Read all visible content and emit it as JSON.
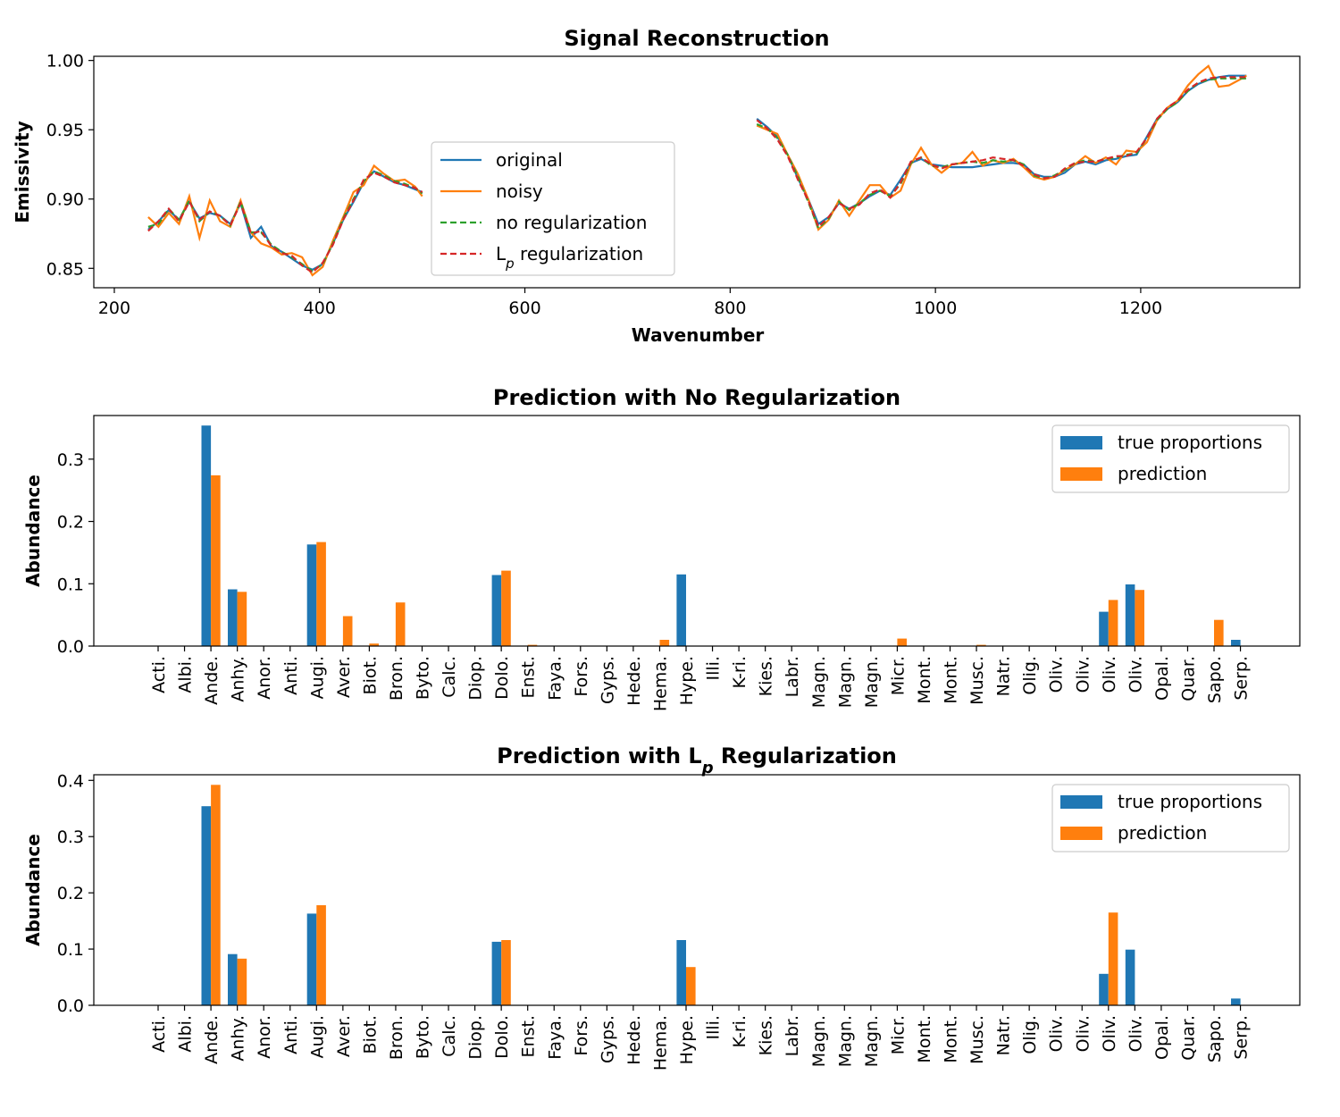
{
  "colors": {
    "original": "#1f77b4",
    "noisy": "#ff7f0e",
    "no_reg": "#2ca02c",
    "lp_reg": "#d62728",
    "true": "#1f77b4",
    "pred": "#ff7f0e"
  },
  "chart_data": [
    {
      "type": "line",
      "title": "Signal Reconstruction",
      "xlabel": "Wavenumber",
      "ylabel": "Emissivity",
      "xlim": [
        180,
        1355
      ],
      "ylim": [
        0.836,
        1.003
      ],
      "xticks": [
        200,
        400,
        600,
        800,
        1000,
        1200
      ],
      "yticks": [
        0.85,
        0.9,
        0.95,
        1.0
      ],
      "ytick_labels": [
        "0.85",
        "0.90",
        "0.95",
        "1.00"
      ],
      "legend_position": "center",
      "x": [
        [
          233,
          243,
          253,
          263,
          273,
          283,
          293,
          303,
          313,
          323,
          333,
          343,
          353,
          363,
          373,
          383,
          393,
          403,
          413,
          423,
          433,
          443,
          453,
          463,
          473,
          483,
          493,
          500
        ],
        [
          826,
          836,
          846,
          856,
          866,
          876,
          886,
          896,
          906,
          916,
          926,
          936,
          946,
          956,
          966,
          976,
          986,
          996,
          1006,
          1016,
          1026,
          1036,
          1046,
          1056,
          1066,
          1076,
          1086,
          1096,
          1106,
          1116,
          1126,
          1136,
          1146,
          1156,
          1166,
          1176,
          1186,
          1196,
          1206,
          1216,
          1226,
          1236,
          1246,
          1256,
          1266,
          1276,
          1286,
          1296,
          1303
        ]
      ],
      "series": [
        {
          "name": "original",
          "style": "solid",
          "values": [
            [
              0.878,
              0.884,
              0.892,
              0.885,
              0.898,
              0.886,
              0.89,
              0.888,
              0.882,
              0.897,
              0.872,
              0.88,
              0.866,
              0.862,
              0.857,
              0.852,
              0.849,
              0.853,
              0.868,
              0.885,
              0.898,
              0.912,
              0.92,
              0.916,
              0.912,
              0.91,
              0.907,
              0.905
            ],
            [
              0.958,
              0.952,
              0.945,
              0.932,
              0.915,
              0.9,
              0.882,
              0.887,
              0.897,
              0.893,
              0.897,
              0.902,
              0.906,
              0.903,
              0.914,
              0.926,
              0.929,
              0.925,
              0.924,
              0.923,
              0.923,
              0.923,
              0.924,
              0.925,
              0.926,
              0.926,
              0.925,
              0.918,
              0.916,
              0.916,
              0.919,
              0.925,
              0.927,
              0.925,
              0.928,
              0.929,
              0.931,
              0.932,
              0.945,
              0.958,
              0.965,
              0.97,
              0.978,
              0.983,
              0.986,
              0.988,
              0.989,
              0.989,
              0.989
            ]
          ]
        },
        {
          "name": "noisy",
          "style": "solid",
          "values": [
            [
              0.887,
              0.88,
              0.89,
              0.882,
              0.902,
              0.872,
              0.899,
              0.884,
              0.88,
              0.899,
              0.876,
              0.868,
              0.865,
              0.86,
              0.861,
              0.858,
              0.845,
              0.851,
              0.87,
              0.887,
              0.905,
              0.91,
              0.924,
              0.918,
              0.913,
              0.914,
              0.909,
              0.902
            ],
            [
              0.953,
              0.95,
              0.947,
              0.932,
              0.918,
              0.9,
              0.878,
              0.885,
              0.899,
              0.888,
              0.899,
              0.91,
              0.91,
              0.901,
              0.906,
              0.925,
              0.937,
              0.925,
              0.919,
              0.925,
              0.926,
              0.934,
              0.924,
              0.928,
              0.926,
              0.929,
              0.923,
              0.916,
              0.914,
              0.916,
              0.921,
              0.925,
              0.931,
              0.926,
              0.93,
              0.925,
              0.935,
              0.934,
              0.941,
              0.957,
              0.966,
              0.971,
              0.982,
              0.99,
              0.996,
              0.981,
              0.982,
              0.986,
              0.989
            ]
          ]
        },
        {
          "name": "no regularization",
          "style": "dashed",
          "values": [
            [
              0.88,
              0.882,
              0.893,
              0.885,
              0.899,
              0.884,
              0.891,
              0.888,
              0.881,
              0.898,
              0.876,
              0.876,
              0.867,
              0.862,
              0.858,
              0.853,
              0.848,
              0.853,
              0.868,
              0.886,
              0.9,
              0.913,
              0.92,
              0.917,
              0.913,
              0.911,
              0.908,
              0.904
            ],
            [
              0.954,
              0.951,
              0.944,
              0.932,
              0.916,
              0.898,
              0.879,
              0.886,
              0.898,
              0.892,
              0.897,
              0.903,
              0.906,
              0.902,
              0.911,
              0.926,
              0.93,
              0.924,
              0.923,
              0.925,
              0.926,
              0.927,
              0.926,
              0.928,
              0.927,
              0.928,
              0.925,
              0.917,
              0.915,
              0.917,
              0.921,
              0.926,
              0.928,
              0.927,
              0.929,
              0.93,
              0.932,
              0.933,
              0.944,
              0.957,
              0.965,
              0.97,
              0.978,
              0.984,
              0.986,
              0.987,
              0.987,
              0.987,
              0.987
            ]
          ]
        },
        {
          "name": "L$_p$ regularization",
          "style": "dashed",
          "values": [
            [
              0.877,
              0.884,
              0.893,
              0.884,
              0.898,
              0.885,
              0.891,
              0.888,
              0.881,
              0.897,
              0.875,
              0.877,
              0.866,
              0.861,
              0.859,
              0.852,
              0.847,
              0.854,
              0.867,
              0.885,
              0.899,
              0.914,
              0.919,
              0.916,
              0.912,
              0.91,
              0.908,
              0.905
            ],
            [
              0.957,
              0.951,
              0.943,
              0.931,
              0.914,
              0.899,
              0.88,
              0.887,
              0.897,
              0.893,
              0.896,
              0.904,
              0.907,
              0.901,
              0.912,
              0.927,
              0.93,
              0.925,
              0.922,
              0.925,
              0.926,
              0.927,
              0.928,
              0.93,
              0.929,
              0.928,
              0.924,
              0.918,
              0.915,
              0.916,
              0.922,
              0.926,
              0.927,
              0.927,
              0.929,
              0.931,
              0.931,
              0.934,
              0.944,
              0.958,
              0.966,
              0.971,
              0.979,
              0.984,
              0.987,
              0.988,
              0.988,
              0.988,
              0.988
            ]
          ]
        }
      ]
    },
    {
      "type": "bar",
      "title": "Prediction with No Regularization",
      "xlabel": "",
      "ylabel": "Abundance",
      "ylim": [
        0,
        0.37
      ],
      "yticks": [
        0.0,
        0.1,
        0.2,
        0.3
      ],
      "ytick_labels": [
        "0.0",
        "0.1",
        "0.2",
        "0.3"
      ],
      "legend_position": "top-right",
      "categories": [
        "Acti.",
        "Albi.",
        "Ande.",
        "Anhy.",
        "Anor.",
        "Anti.",
        "Augi.",
        "Aver.",
        "Biot.",
        "Bron.",
        "Byto.",
        "Calc.",
        "Diop.",
        "Dolo.",
        "Enst.",
        "Faya.",
        "Fors.",
        "Gyps.",
        "Hede.",
        "Hema.",
        "Hype.",
        "Illi.",
        "K-ri.",
        "Kies.",
        "Labr.",
        "Magn.",
        "Magn.",
        "Magn.",
        "Micr.",
        "Mont.",
        "Mont.",
        "Musc.",
        "Natr.",
        "Olig.",
        "Oliv.",
        "Oliv.",
        "Oliv.",
        "Oliv.",
        "Opal.",
        "Quar.",
        "Sapo.",
        "Serp."
      ],
      "series": [
        {
          "name": "true proportions",
          "values": [
            0,
            0,
            0.354,
            0.091,
            0,
            0,
            0.163,
            0,
            0,
            0,
            0,
            0,
            0,
            0.114,
            0,
            0,
            0,
            0,
            0,
            0,
            0.115,
            0,
            0,
            0,
            0,
            0,
            0,
            0,
            0,
            0,
            0,
            0,
            0,
            0,
            0,
            0,
            0.055,
            0.099,
            0,
            0,
            0,
            0.01
          ]
        },
        {
          "name": "prediction",
          "values": [
            0,
            0,
            0.274,
            0.087,
            0,
            0,
            0.167,
            0.048,
            0.004,
            0.07,
            0,
            0,
            0,
            0.121,
            0.002,
            0,
            0,
            0,
            0,
            0.01,
            0,
            0,
            0,
            0,
            0,
            0,
            0,
            0,
            0.012,
            0,
            0,
            0.002,
            0,
            0,
            0,
            0,
            0.074,
            0.09,
            0,
            0,
            0.042,
            0
          ]
        }
      ]
    },
    {
      "type": "bar",
      "title": "Prediction with L$_p$ Regularization",
      "xlabel": "",
      "ylabel": "Abundance",
      "ylim": [
        0,
        0.41
      ],
      "yticks": [
        0.0,
        0.1,
        0.2,
        0.3,
        0.4
      ],
      "ytick_labels": [
        "0.0",
        "0.1",
        "0.2",
        "0.3",
        "0.4"
      ],
      "legend_position": "top-right",
      "categories": [
        "Acti.",
        "Albi.",
        "Ande.",
        "Anhy.",
        "Anor.",
        "Anti.",
        "Augi.",
        "Aver.",
        "Biot.",
        "Bron.",
        "Byto.",
        "Calc.",
        "Diop.",
        "Dolo.",
        "Enst.",
        "Faya.",
        "Fors.",
        "Gyps.",
        "Hede.",
        "Hema.",
        "Hype.",
        "Illi.",
        "K-ri.",
        "Kies.",
        "Labr.",
        "Magn.",
        "Magn.",
        "Magn.",
        "Micr.",
        "Mont.",
        "Mont.",
        "Musc.",
        "Natr.",
        "Olig.",
        "Oliv.",
        "Oliv.",
        "Oliv.",
        "Oliv.",
        "Opal.",
        "Quar.",
        "Sapo.",
        "Serp."
      ],
      "series": [
        {
          "name": "true proportions",
          "values": [
            0,
            0,
            0.354,
            0.091,
            0,
            0,
            0.163,
            0,
            0,
            0,
            0,
            0,
            0,
            0.113,
            0,
            0,
            0,
            0,
            0,
            0,
            0.116,
            0,
            0,
            0,
            0,
            0,
            0,
            0,
            0,
            0,
            0,
            0,
            0,
            0,
            0,
            0,
            0.056,
            0.099,
            0,
            0,
            0,
            0.012
          ]
        },
        {
          "name": "prediction",
          "values": [
            0,
            0,
            0.392,
            0.083,
            0,
            0,
            0.178,
            0,
            0,
            0,
            0,
            0,
            0,
            0.116,
            0,
            0,
            0,
            0,
            0,
            0,
            0.068,
            0,
            0,
            0,
            0,
            0,
            0,
            0,
            0,
            0,
            0,
            0,
            0,
            0,
            0,
            0,
            0.165,
            0,
            0,
            0,
            0,
            0
          ]
        }
      ]
    }
  ]
}
